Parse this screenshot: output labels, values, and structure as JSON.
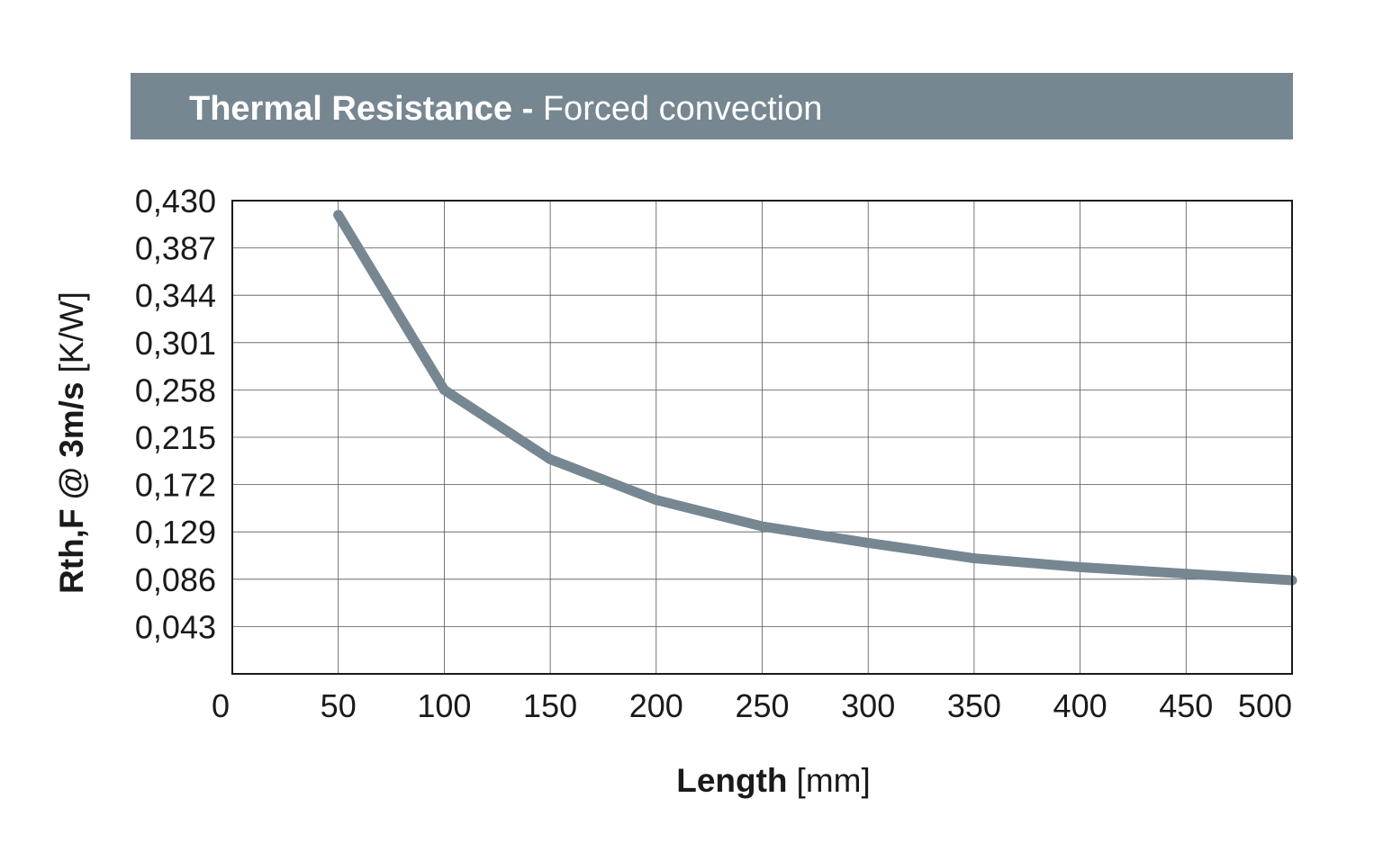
{
  "colors": {
    "banner": "#768792",
    "line": "#768792",
    "grid": "#555555",
    "frame": "#1a1a1a",
    "text": "#1a1a1a",
    "banner_text": "#ffffff"
  },
  "chart_data": {
    "type": "line",
    "title": "Thermal Resistance",
    "title_separator": " - ",
    "subtitle": "Forced convection",
    "xlabel": "Length",
    "xlabel_unit": "[mm]",
    "ylabel": "Rth,F @ 3m/s",
    "ylabel_unit": "[K/W]",
    "xlim": [
      0,
      500
    ],
    "ylim": [
      0,
      0.43
    ],
    "grid": true,
    "x_ticks": [
      "0",
      "50",
      "100",
      "150",
      "200",
      "250",
      "300",
      "350",
      "400",
      "450",
      "500"
    ],
    "y_ticks": [
      "0,430",
      "0,387",
      "0,344",
      "0,301",
      "0,258",
      "0,215",
      "0,172",
      "0,129",
      "0,086",
      "0,043"
    ],
    "series": [
      {
        "x": [
          50,
          100,
          150,
          200,
          250,
          300,
          350,
          400,
          450,
          500
        ],
        "values": [
          0.417,
          0.258,
          0.195,
          0.158,
          0.134,
          0.119,
          0.105,
          0.097,
          0.091,
          0.085
        ]
      }
    ]
  }
}
